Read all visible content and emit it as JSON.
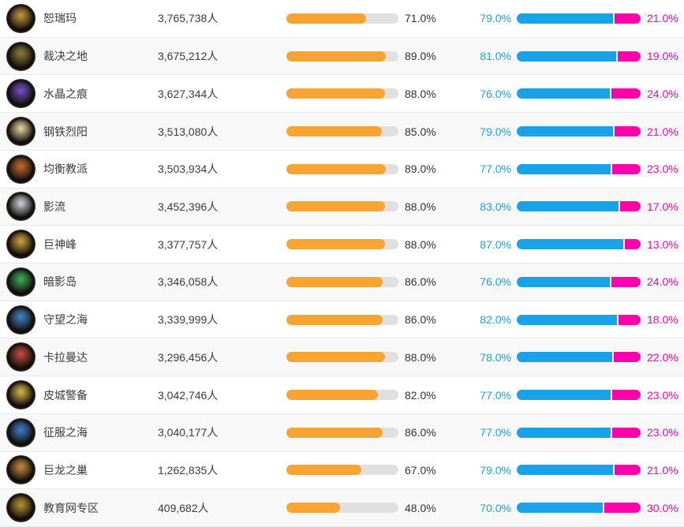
{
  "colors": {
    "orange_bar": "#f7a433",
    "bar_track": "#e0e0e0",
    "blue": "#18a2e8",
    "magenta": "#ff00aa",
    "row_alt_bg": "#f8f8f8",
    "row_border": "#e9e9e9",
    "text": "#333333"
  },
  "table": {
    "rows": [
      {
        "name": "恕瑞玛",
        "population": "3,765,738人",
        "bar_pct": 71,
        "bar_label": "71.0%",
        "blue_pct": 79,
        "blue_label": "79.0%",
        "pink_pct": 21,
        "pink_label": "21.0%",
        "icon": "server-badge",
        "icon_color": "#c79b3b"
      },
      {
        "name": "裁决之地",
        "population": "3,675,212人",
        "bar_pct": 89,
        "bar_label": "89.0%",
        "blue_pct": 81,
        "blue_label": "81.0%",
        "pink_pct": 19,
        "pink_label": "19.0%",
        "icon": "server-badge",
        "icon_color": "#8a7f3a"
      },
      {
        "name": "水晶之痕",
        "population": "3,627,344人",
        "bar_pct": 88,
        "bar_label": "88.0%",
        "blue_pct": 76,
        "blue_label": "76.0%",
        "pink_pct": 24,
        "pink_label": "24.0%",
        "icon": "server-badge",
        "icon_color": "#7a4fc9"
      },
      {
        "name": "钢铁烈阳",
        "population": "3,513,080人",
        "bar_pct": 85,
        "bar_label": "85.0%",
        "blue_pct": 79,
        "blue_label": "79.0%",
        "pink_pct": 21,
        "pink_label": "21.0%",
        "icon": "server-badge",
        "icon_color": "#e8d9a0"
      },
      {
        "name": "均衡教派",
        "population": "3,503,934人",
        "bar_pct": 89,
        "bar_label": "89.0%",
        "blue_pct": 77,
        "blue_label": "77.0%",
        "pink_pct": 23,
        "pink_label": "23.0%",
        "icon": "server-badge",
        "icon_color": "#c96a2f"
      },
      {
        "name": "影流",
        "population": "3,452,396人",
        "bar_pct": 88,
        "bar_label": "88.0%",
        "blue_pct": 83,
        "blue_label": "83.0%",
        "pink_pct": 17,
        "pink_label": "17.0%",
        "icon": "server-badge",
        "icon_color": "#cfd6dd"
      },
      {
        "name": "巨神峰",
        "population": "3,377,757人",
        "bar_pct": 88,
        "bar_label": "88.0%",
        "blue_pct": 87,
        "blue_label": "87.0%",
        "pink_pct": 13,
        "pink_label": "13.0%",
        "icon": "server-badge",
        "icon_color": "#d4a33f"
      },
      {
        "name": "暗影岛",
        "population": "3,346,058人",
        "bar_pct": 86,
        "bar_label": "86.0%",
        "blue_pct": 76,
        "blue_label": "76.0%",
        "pink_pct": 24,
        "pink_label": "24.0%",
        "icon": "server-badge",
        "icon_color": "#3fae5a"
      },
      {
        "name": "守望之海",
        "population": "3,339,999人",
        "bar_pct": 86,
        "bar_label": "86.0%",
        "blue_pct": 82,
        "blue_label": "82.0%",
        "pink_pct": 18,
        "pink_label": "18.0%",
        "icon": "server-badge",
        "icon_color": "#3f86c9"
      },
      {
        "name": "卡拉曼达",
        "population": "3,296,456人",
        "bar_pct": 88,
        "bar_label": "88.0%",
        "blue_pct": 78,
        "blue_label": "78.0%",
        "pink_pct": 22,
        "pink_label": "22.0%",
        "icon": "server-badge",
        "icon_color": "#c94a3f"
      },
      {
        "name": "皮城警备",
        "population": "3,042,746人",
        "bar_pct": 82,
        "bar_label": "82.0%",
        "blue_pct": 77,
        "blue_label": "77.0%",
        "pink_pct": 23,
        "pink_label": "23.0%",
        "icon": "server-badge",
        "icon_color": "#d8b84a"
      },
      {
        "name": "征服之海",
        "population": "3,040,177人",
        "bar_pct": 86,
        "bar_label": "86.0%",
        "blue_pct": 77,
        "blue_label": "77.0%",
        "pink_pct": 23,
        "pink_label": "23.0%",
        "icon": "server-badge",
        "icon_color": "#3f7fd0"
      },
      {
        "name": "巨龙之巢",
        "population": "1,262,835人",
        "bar_pct": 67,
        "bar_label": "67.0%",
        "blue_pct": 79,
        "blue_label": "79.0%",
        "pink_pct": 21,
        "pink_label": "21.0%",
        "icon": "server-badge",
        "icon_color": "#c98a3f"
      },
      {
        "name": "教育网专区",
        "population": "409,682人",
        "bar_pct": 48,
        "bar_label": "48.0%",
        "blue_pct": 70,
        "blue_label": "70.0%",
        "pink_pct": 30,
        "pink_label": "30.0%",
        "icon": "server-badge",
        "icon_color": "#b8952f"
      }
    ]
  }
}
